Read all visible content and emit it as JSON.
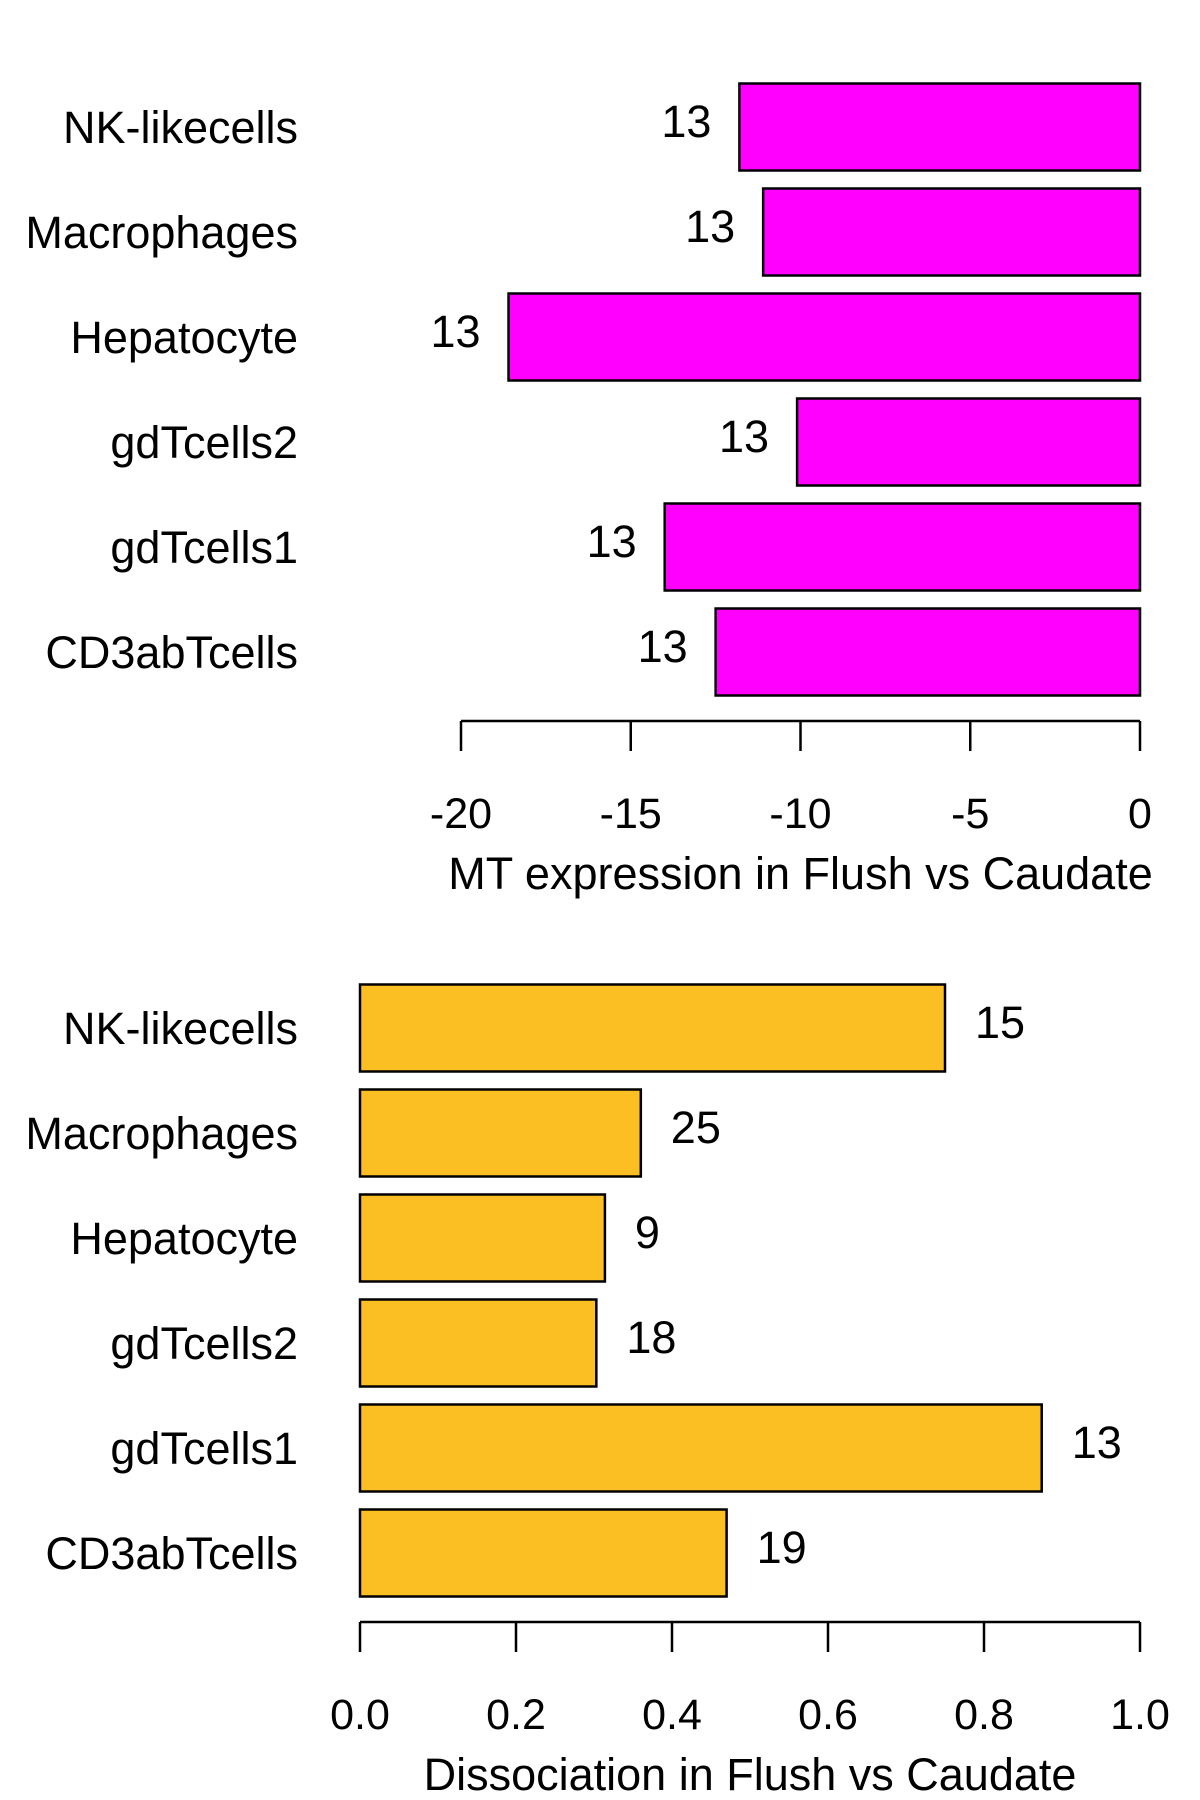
{
  "chart_data": [
    {
      "type": "bar",
      "orientation": "horizontal",
      "xlabel": "MT expression in Flush vs Caudate",
      "xlim": [
        -20,
        0
      ],
      "xticks": [
        -20,
        -15,
        -10,
        -5,
        0
      ],
      "tick_labels": [
        "-20",
        "-15",
        "-10",
        "-5",
        "0"
      ],
      "bar_color": "#ff00ff",
      "categories": [
        "NK-likecells",
        "Macrophages",
        "Hepatocyte",
        "gdTcells2",
        "gdTcells1",
        "CD3abTcells"
      ],
      "values": [
        -11.8,
        -11.1,
        -18.6,
        -10.1,
        -14.0,
        -12.5
      ],
      "bar_labels": [
        "13",
        "13",
        "13",
        "13",
        "13",
        "13"
      ]
    },
    {
      "type": "bar",
      "orientation": "horizontal",
      "xlabel": "Dissociation in Flush vs Caudate",
      "xlim": [
        0,
        1
      ],
      "xticks": [
        0,
        0.2,
        0.4,
        0.6,
        0.8,
        1.0
      ],
      "tick_labels": [
        "0.0",
        "0.2",
        "0.4",
        "0.6",
        "0.8",
        "1.0"
      ],
      "bar_color": "#fbbf24",
      "categories": [
        "NK-likecells",
        "Macrophages",
        "Hepatocyte",
        "gdTcells2",
        "gdTcells1",
        "CD3abTcells"
      ],
      "values": [
        0.75,
        0.36,
        0.314,
        0.303,
        0.874,
        0.47
      ],
      "bar_labels": [
        "15",
        "25",
        "9",
        "18",
        "13",
        "19"
      ]
    }
  ]
}
